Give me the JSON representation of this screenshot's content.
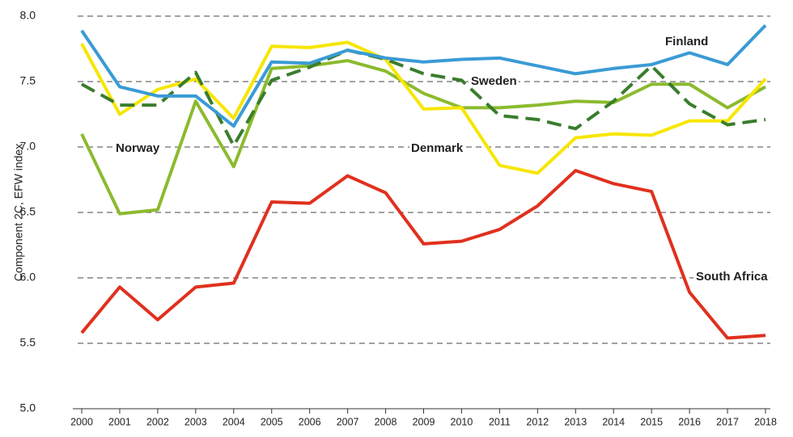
{
  "chart_data": {
    "type": "line",
    "y_label": "Component 2C, EFW index",
    "categories": [
      "2000",
      "2001",
      "2002",
      "2003",
      "2004",
      "2005",
      "2006",
      "2007",
      "2008",
      "2009",
      "2010",
      "2011",
      "2012",
      "2013",
      "2014",
      "2015",
      "2016",
      "2017",
      "2018"
    ],
    "series": [
      {
        "name": "Finland",
        "color": "#3a9bd5",
        "dashed": false,
        "values": [
          7.89,
          7.46,
          7.39,
          7.39,
          7.16,
          7.65,
          7.64,
          7.74,
          7.68,
          7.65,
          7.67,
          7.68,
          7.62,
          7.56,
          7.6,
          7.63,
          7.72,
          7.63,
          7.93
        ]
      },
      {
        "name": "Denmark",
        "color": "#f7e600",
        "dashed": false,
        "values": [
          7.79,
          7.25,
          7.44,
          7.52,
          7.22,
          7.77,
          7.76,
          7.8,
          7.67,
          7.29,
          7.3,
          6.86,
          6.8,
          7.07,
          7.1,
          7.09,
          7.2,
          7.2,
          7.52
        ]
      },
      {
        "name": "Norway",
        "color": "#8cba2e",
        "dashed": false,
        "values": [
          7.1,
          6.49,
          6.52,
          7.35,
          6.85,
          7.6,
          7.62,
          7.66,
          7.58,
          7.41,
          7.3,
          7.3,
          7.32,
          7.35,
          7.34,
          7.48,
          7.48,
          7.3,
          7.46
        ]
      },
      {
        "name": "Sweden",
        "color": "#3a7d2c",
        "dashed": true,
        "values": [
          7.48,
          7.32,
          7.32,
          7.57,
          7.01,
          7.51,
          7.61,
          7.74,
          7.67,
          7.56,
          7.51,
          7.24,
          7.21,
          7.14,
          7.35,
          7.62,
          7.33,
          7.17,
          7.21
        ]
      },
      {
        "name": "South Africa",
        "color": "#e0301e",
        "dashed": false,
        "values": [
          5.58,
          5.93,
          5.68,
          5.93,
          5.96,
          6.58,
          6.57,
          6.78,
          6.65,
          6.26,
          6.28,
          6.37,
          6.55,
          6.82,
          6.72,
          6.66,
          5.89,
          5.54,
          5.56
        ]
      }
    ],
    "ylim": [
      5,
      8
    ],
    "yticks": [
      {
        "value": 5,
        "label": "5.0"
      },
      {
        "value": 5.5,
        "label": "5.5"
      },
      {
        "value": 6,
        "label": "6.0"
      },
      {
        "value": 6.5,
        "label": "6.5"
      },
      {
        "value": 7,
        "label": "7.0"
      },
      {
        "value": 7.5,
        "label": "7.5"
      },
      {
        "value": 8,
        "label": "8.0"
      }
    ],
    "grid": true
  }
}
